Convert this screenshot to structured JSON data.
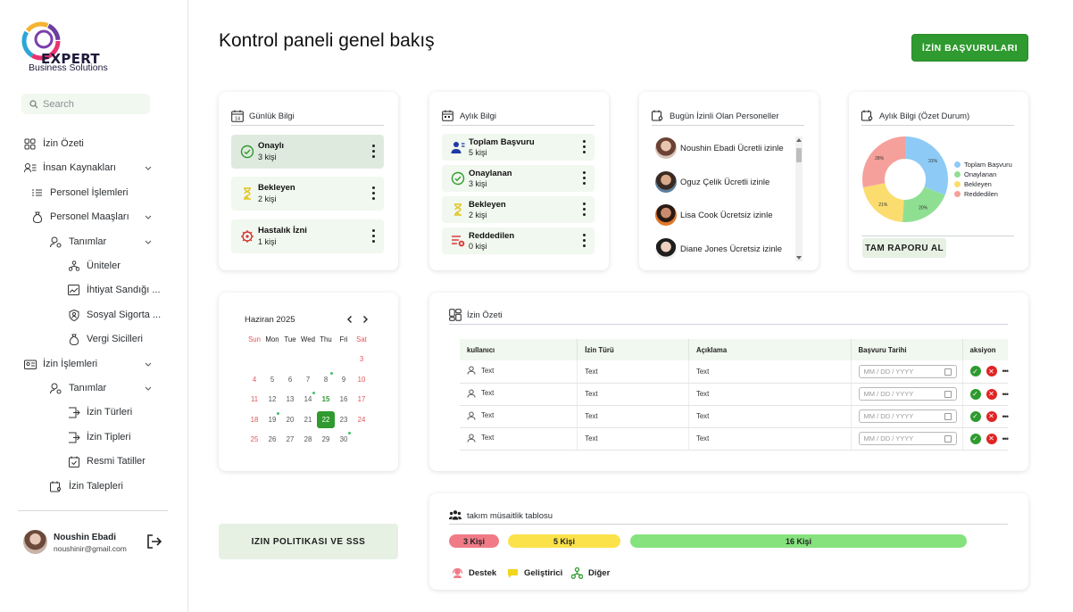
{
  "brand": {
    "name": "EXPERT",
    "subtitle": "Business Solutions"
  },
  "search": {
    "placeholder": "Search"
  },
  "sidebar": {
    "items": [
      {
        "label": "İzin Özeti"
      },
      {
        "label": "İnsan Kaynakları"
      },
      {
        "label": "Personel İşlemleri"
      },
      {
        "label": "Personel Maaşları"
      },
      {
        "label": "Tanımlar"
      },
      {
        "label": "Üniteler"
      },
      {
        "label": "İhtiyat Sandığı ..."
      },
      {
        "label": "Sosyal Sigorta ..."
      },
      {
        "label": "Vergi Sicilleri"
      },
      {
        "label": "İzin İşlemleri"
      },
      {
        "label": "Tanımlar"
      },
      {
        "label": "İzin Türleri"
      },
      {
        "label": "İzin Tipleri"
      },
      {
        "label": "Resmi Tatiller"
      },
      {
        "label": "İzin Talepleri"
      }
    ]
  },
  "user": {
    "name": "Noushin Ebadi",
    "email": "noushinir@gmail.com"
  },
  "header": {
    "title": "Kontrol paneli genel bakış",
    "primary_button": "İZİN BAŞVURULARI"
  },
  "daily": {
    "title": "Günlük Bilgi",
    "items": [
      {
        "label": "Onaylı",
        "value": "3 kişi"
      },
      {
        "label": "Bekleyen",
        "value": "2 kişi"
      },
      {
        "label": "Hastalık İzni",
        "value": "1 kişi"
      }
    ]
  },
  "monthly": {
    "title": "Aylık Bilgi",
    "items": [
      {
        "label": "Toplam Başvuru",
        "value": "5 kişi"
      },
      {
        "label": "Onaylanan",
        "value": "3 kişi"
      },
      {
        "label": "Bekleyen",
        "value": "2 kişi"
      },
      {
        "label": "Reddedilen",
        "value": "0 kişi"
      }
    ]
  },
  "on_leave": {
    "title": "Bugün İzinli Olan Personeller",
    "people": [
      {
        "text": "Noushin Ebadi Ücretli izinle"
      },
      {
        "text": "Oguz Çelik Ücretli izinle"
      },
      {
        "text": "Lisa Cook Ücretsiz izinle"
      },
      {
        "text": "Diane Jones Ücretsiz izinle"
      }
    ]
  },
  "summary_chart": {
    "title": "Aylık Bilgi (Özet Durum)",
    "report_button": "TAM RAPORU AL"
  },
  "chart_data": {
    "type": "pie",
    "categories": [
      "Toplam Başvuru",
      "Onaylanan",
      "Bekleyen",
      "Reddedilen"
    ],
    "values": [
      31,
      20,
      21,
      28
    ],
    "labels": [
      "31%",
      "20%",
      "21%",
      "28%"
    ],
    "colors": [
      "#8dcbf6",
      "#8fdf93",
      "#fbdc6e",
      "#f5a09a"
    ],
    "legend": "right"
  },
  "calendar": {
    "month_label": "Haziran 2025",
    "weekdays": [
      "Sun",
      "Mon",
      "Tue",
      "Wed",
      "Thu",
      "Fri",
      "Sat"
    ],
    "weeks": [
      [
        "",
        "",
        "",
        "",
        "",
        "",
        "3"
      ],
      [
        "4",
        "5",
        "6",
        "7",
        "8",
        "9",
        "10"
      ],
      [
        "11",
        "12",
        "13",
        "14",
        "15",
        "16",
        "17"
      ],
      [
        "18",
        "19",
        "20",
        "21",
        "22",
        "23",
        "24"
      ],
      [
        "25",
        "26",
        "27",
        "28",
        "29",
        "30",
        ""
      ]
    ],
    "selected": "22",
    "highlight": "15",
    "marked_days": [
      "8",
      "14",
      "19",
      "30"
    ]
  },
  "leave_table": {
    "title": "İzin Özeti",
    "columns": [
      "kullanıcı",
      "İzin Türü",
      "Açıklama",
      "Başvuru Tarihi",
      "aksiyon"
    ],
    "rows": [
      {
        "user": "Text",
        "type": "Text",
        "desc": "Text",
        "date_placeholder": "MM / DD / YYYY"
      },
      {
        "user": "Text",
        "type": "Text",
        "desc": "Text",
        "date_placeholder": "MM / DD / YYYY"
      },
      {
        "user": "Text",
        "type": "Text",
        "desc": "Text",
        "date_placeholder": "MM / DD / YYYY"
      },
      {
        "user": "Text",
        "type": "Text",
        "desc": "Text",
        "date_placeholder": "MM / DD / YYYY"
      }
    ]
  },
  "team": {
    "title": "takım müsaitlik tablosu",
    "pills": [
      {
        "label": "3 Kişi",
        "color": "#f07b87"
      },
      {
        "label": "5 Kişi",
        "color": "#fbe24a"
      },
      {
        "label": "16 Kişi",
        "color": "#85e27d"
      }
    ],
    "legend": [
      {
        "label": "Destek"
      },
      {
        "label": "Geliştirici"
      },
      {
        "label": "Diğer"
      }
    ]
  },
  "policy_button": "IZIN POLITIKASI VE SSS"
}
